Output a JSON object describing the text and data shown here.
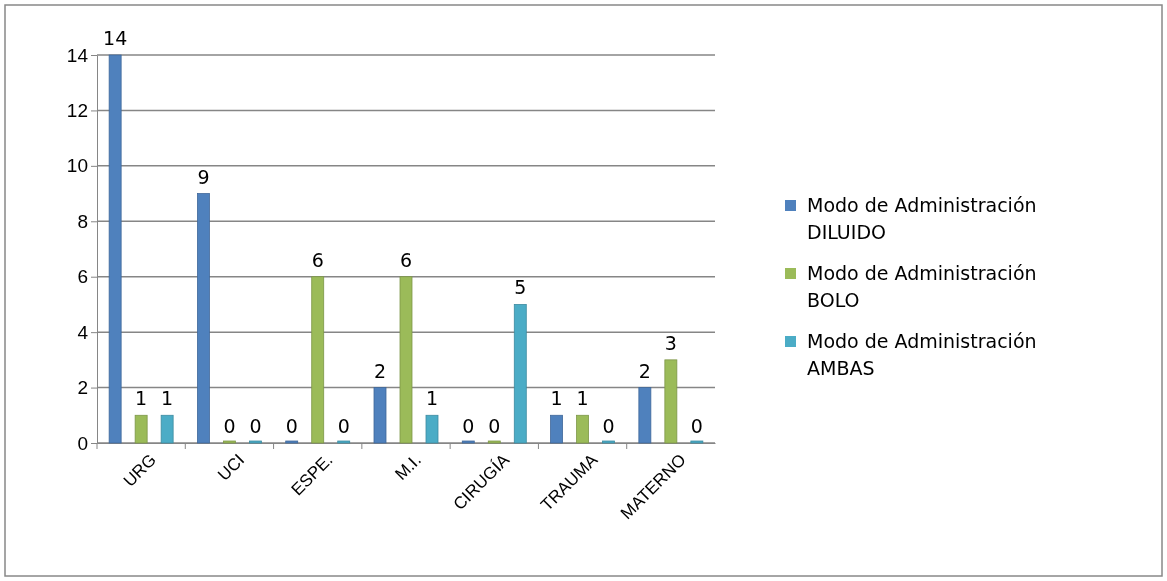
{
  "chart_data": {
    "type": "bar",
    "categories": [
      "URG",
      "UCI",
      "ESPE.",
      "M.I.",
      "CIRUGÍA",
      "TRAUMA",
      "MATERNO"
    ],
    "series": [
      {
        "name": "Modo de Administración DILUIDO",
        "color": "#4f81bd",
        "values": [
          14,
          9,
          0,
          2,
          0,
          1,
          2
        ]
      },
      {
        "name": "Modo de Administración BOLO",
        "color": "#9bbb59",
        "values": [
          1,
          0,
          6,
          6,
          0,
          1,
          3
        ]
      },
      {
        "name": "Modo de Administración AMBAS",
        "color": "#4bacc6",
        "values": [
          1,
          0,
          0,
          1,
          5,
          0,
          0
        ]
      }
    ],
    "ylim": [
      0,
      14
    ],
    "yticks": [
      0,
      2,
      4,
      6,
      8,
      10,
      12,
      14
    ],
    "grid": "y",
    "legend": "right",
    "data_labels": true
  }
}
